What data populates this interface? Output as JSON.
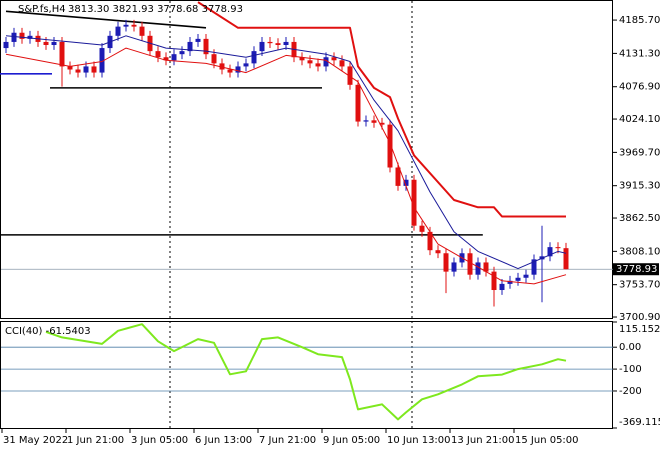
{
  "chart_data": {
    "type": "candlestick",
    "title": "S&P.fs,H4",
    "ohlc_label": "3813.30 3821.93 3778.68 3778.93",
    "x_labels": [
      "31 May 2022",
      "1 Jun 21:00",
      "3 Jun 05:00",
      "6 Jun 13:00",
      "7 Jun 21:00",
      "9 Jun 05:00",
      "10 Jun 13:00",
      "13 Jun 21:00",
      "15 Jun 05:00"
    ],
    "open": [
      4140,
      4150,
      4165,
      4155,
      4160,
      4150,
      4145,
      4150,
      4110,
      4105,
      4100,
      4110,
      4100,
      4140,
      4160,
      4175,
      4178,
      4175,
      4160,
      4135,
      4125,
      4120,
      4130,
      4135,
      4150,
      4155,
      4130,
      4115,
      4105,
      4100,
      4110,
      4115,
      4135,
      4150,
      4148,
      4145,
      4150,
      4125,
      4120,
      4115,
      4110,
      4125,
      4120,
      4110,
      4080,
      4020,
      4022,
      4018,
      4015,
      3945,
      3915,
      3925,
      3850,
      3840,
      3810,
      3805,
      3775,
      3790,
      3805,
      3770,
      3790,
      3775,
      3745,
      3755,
      3760,
      3765,
      3770,
      3795,
      3800,
      3815,
      3813.3
    ],
    "high": [
      4158,
      4173,
      4173,
      4168,
      4168,
      4158,
      4158,
      4158,
      4118,
      4113,
      4118,
      4118,
      4148,
      4168,
      4183,
      4186,
      4186,
      4183,
      4168,
      4143,
      4133,
      4138,
      4143,
      4158,
      4163,
      4163,
      4138,
      4123,
      4113,
      4118,
      4123,
      4143,
      4158,
      4158,
      4156,
      4158,
      4158,
      4133,
      4128,
      4123,
      4133,
      4133,
      4128,
      4118,
      4088,
      4030,
      4030,
      4026,
      4023,
      3953,
      3933,
      3933,
      3858,
      3848,
      3818,
      3813,
      3798,
      3813,
      3813,
      3798,
      3798,
      3783,
      3763,
      3768,
      3773,
      3778,
      3803,
      3850,
      3823,
      3823,
      3821.93
    ],
    "low": [
      4132,
      4142,
      4147,
      4147,
      4142,
      4137,
      4137,
      4077,
      4097,
      4092,
      4092,
      4092,
      4092,
      4132,
      4152,
      4167,
      4167,
      4152,
      4127,
      4117,
      4112,
      4112,
      4122,
      4127,
      4142,
      4122,
      4107,
      4097,
      4092,
      4092,
      4102,
      4107,
      4127,
      4140,
      4137,
      4137,
      4117,
      4112,
      4107,
      4102,
      4102,
      4112,
      4102,
      4072,
      4012,
      4012,
      4010,
      4007,
      3937,
      3907,
      3907,
      3842,
      3832,
      3802,
      3797,
      3740,
      3767,
      3782,
      3762,
      3762,
      3767,
      3718,
      3737,
      3747,
      3752,
      3757,
      3762,
      3725,
      3792,
      3805,
      3778.68
    ],
    "close": [
      4150,
      4165,
      4155,
      4160,
      4150,
      4145,
      4150,
      4110,
      4105,
      4100,
      4110,
      4100,
      4140,
      4160,
      4175,
      4178,
      4175,
      4160,
      4135,
      4125,
      4120,
      4130,
      4135,
      4150,
      4155,
      4130,
      4115,
      4105,
      4100,
      4110,
      4115,
      4135,
      4150,
      4148,
      4145,
      4150,
      4125,
      4120,
      4115,
      4110,
      4125,
      4120,
      4110,
      4080,
      4020,
      4022,
      4018,
      4015,
      3945,
      3915,
      3925,
      3850,
      3840,
      3810,
      3805,
      3775,
      3790,
      3805,
      3770,
      3790,
      3775,
      3745,
      3755,
      3760,
      3765,
      3770,
      3795,
      3800,
      3815,
      3813.3,
      3778.93
    ],
    "up_color": "#1c1cb4",
    "down_color": "#e01010",
    "ylim": [
      3699.3,
      4215.2
    ],
    "yticks": [
      {
        "value": 4185.7,
        "label": "4185.70"
      },
      {
        "value": 4131.3,
        "label": "4131.30"
      },
      {
        "value": 4076.9,
        "label": "4076.90"
      },
      {
        "value": 4024.1,
        "label": "4024.10"
      },
      {
        "value": 3969.7,
        "label": "3969.70"
      },
      {
        "value": 3915.3,
        "label": "3915.30"
      },
      {
        "value": 3862.5,
        "label": "3862.50"
      },
      {
        "value": 3808.1,
        "label": "3808.10"
      },
      {
        "value": 3753.7,
        "label": "3753.70"
      },
      {
        "value": 3700.9,
        "label": "3700.90"
      }
    ],
    "indicators": [
      {
        "color": "#1a1a9a",
        "width": 1,
        "x": [
          0,
          8,
          12,
          15,
          20,
          25,
          30,
          35,
          40,
          43,
          46,
          49,
          53,
          56,
          59,
          64,
          69,
          70
        ],
        "values": [
          4160,
          4150,
          4145,
          4160,
          4140,
          4135,
          4125,
          4140,
          4130,
          4118,
          4055,
          4005,
          3905,
          3840,
          3808,
          3780,
          3808,
          3805
        ]
      },
      {
        "color": "#e01010",
        "width": 1,
        "x": [
          0,
          8,
          12,
          15,
          20,
          25,
          30,
          35,
          40,
          44,
          48,
          51,
          54,
          58,
          62,
          66,
          70
        ],
        "values": [
          4130,
          4110,
          4118,
          4140,
          4120,
          4115,
          4100,
          4128,
          4120,
          4085,
          3985,
          3880,
          3820,
          3790,
          3760,
          3755,
          3770
        ]
      },
      {
        "color": "#e01010",
        "width": 2,
        "x": [
          24,
          29,
          43,
          44,
          46,
          48,
          49,
          51,
          56,
          59,
          61,
          62,
          70
        ],
        "values": [
          4215,
          4173,
          4173,
          4110,
          4075,
          4060,
          4025,
          3965,
          3892,
          3880,
          3880,
          3865,
          3865
        ]
      }
    ],
    "drawings": [
      {
        "color": "#000000",
        "x": [
          0,
          25
        ],
        "values": [
          4200,
          4173
        ]
      },
      {
        "color": "#000000",
        "x": [
          5.5,
          39.5
        ],
        "values": [
          4075,
          4075
        ]
      },
      {
        "color": "#000000",
        "x": [
          -0.75,
          59.6
        ],
        "values": [
          3835,
          3835
        ]
      },
      {
        "color": "#1c1cd0",
        "x": [
          -0.75,
          5.75
        ],
        "values": [
          4098,
          4098
        ]
      }
    ],
    "cci": {
      "label": "CCI(40) -61.5403",
      "color": "#7ee81e",
      "ylim": [
        -369.1159,
        115.1521
      ],
      "yticks": [
        115.1521,
        {
          "value": 0,
          "label": "0.00"
        },
        -100,
        -200,
        -369.1159
      ],
      "x": [
        5,
        7,
        12,
        14,
        17,
        19,
        21,
        24,
        26,
        28,
        30,
        32,
        34,
        37,
        39,
        42,
        43,
        44,
        47,
        49,
        50,
        52,
        54,
        57,
        59,
        62,
        64,
        67,
        69,
        70
      ],
      "values": [
        70,
        45,
        15,
        75,
        105,
        27,
        -18,
        37,
        20,
        -124,
        -110,
        37,
        45,
        0,
        -32,
        -45,
        -147,
        -284,
        -261,
        -330,
        -298,
        -238,
        -215,
        -170,
        -133,
        -125,
        -100,
        -78,
        -55,
        -61.5403
      ]
    }
  }
}
